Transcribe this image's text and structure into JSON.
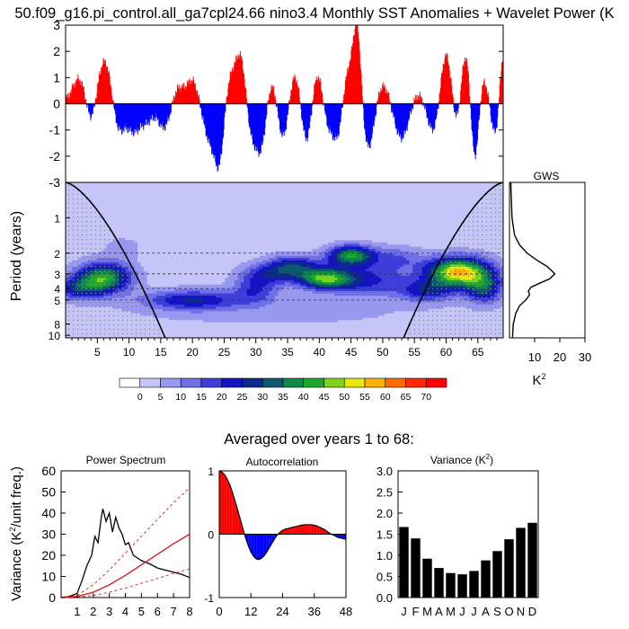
{
  "title": "50.f09_g16.pi_control.all_ga7cpl24.66 nino3.4 Monthly SST Anomalies + Wavelet Power (K",
  "averaged_title": "Averaged over years 1 to 68:",
  "colors": {
    "positive": "#ff0000",
    "negative": "#0000ff",
    "bar": "#000000",
    "cone": "#000000",
    "stipple": "#9a9a9a"
  },
  "chart_data": [
    {
      "id": "timeseries",
      "type": "bar",
      "title": "",
      "xlabel": "",
      "ylabel": "",
      "xlim": [
        0,
        69
      ],
      "ylim": [
        -3,
        3
      ],
      "yticks": [
        -3,
        -2,
        -1,
        0,
        1,
        2,
        3
      ],
      "events": [
        {
          "t": 2.3,
          "a": 1.0,
          "w": 1.2
        },
        {
          "t": 4.0,
          "a": -1.1,
          "w": 0.8
        },
        {
          "t": 6.3,
          "a": 1.8,
          "w": 1.2
        },
        {
          "t": 8.2,
          "a": -1.3,
          "w": 1.0
        },
        {
          "t": 10.8,
          "a": -1.0,
          "w": 1.0
        },
        {
          "t": 12.9,
          "a": -0.6,
          "w": 0.9
        },
        {
          "t": 15.5,
          "a": -0.9,
          "w": 0.9
        },
        {
          "t": 17.8,
          "a": 0.6,
          "w": 0.8
        },
        {
          "t": 20.0,
          "a": 0.9,
          "w": 0.9
        },
        {
          "t": 22.8,
          "a": -1.4,
          "w": 1.0
        },
        {
          "t": 24.3,
          "a": -2.0,
          "w": 0.7
        },
        {
          "t": 26.0,
          "a": 1.0,
          "w": 0.9
        },
        {
          "t": 27.7,
          "a": 1.8,
          "w": 0.8
        },
        {
          "t": 29.2,
          "a": -1.2,
          "w": 0.8
        },
        {
          "t": 30.8,
          "a": -1.7,
          "w": 0.8
        },
        {
          "t": 32.5,
          "a": 0.9,
          "w": 0.8
        },
        {
          "t": 34.3,
          "a": -1.4,
          "w": 0.8
        },
        {
          "t": 36.2,
          "a": 1.2,
          "w": 0.9
        },
        {
          "t": 38.0,
          "a": -1.7,
          "w": 0.8
        },
        {
          "t": 39.7,
          "a": 1.3,
          "w": 0.9
        },
        {
          "t": 41.3,
          "a": -0.9,
          "w": 0.8
        },
        {
          "t": 43.0,
          "a": -1.4,
          "w": 0.8
        },
        {
          "t": 44.5,
          "a": 1.4,
          "w": 0.9
        },
        {
          "t": 46.0,
          "a": 2.9,
          "w": 0.6
        },
        {
          "t": 47.8,
          "a": -1.8,
          "w": 0.9
        },
        {
          "t": 50.0,
          "a": 0.8,
          "w": 1.2
        },
        {
          "t": 53.0,
          "a": -1.4,
          "w": 1.2
        },
        {
          "t": 55.5,
          "a": 0.5,
          "w": 1.3
        },
        {
          "t": 58.0,
          "a": -1.2,
          "w": 1.0
        },
        {
          "t": 60.0,
          "a": 2.1,
          "w": 0.9
        },
        {
          "t": 61.8,
          "a": -1.4,
          "w": 0.8
        },
        {
          "t": 63.0,
          "a": 2.3,
          "w": 0.8
        },
        {
          "t": 64.5,
          "a": -2.5,
          "w": 0.6
        },
        {
          "t": 66.0,
          "a": 1.0,
          "w": 0.8
        },
        {
          "t": 67.8,
          "a": -1.3,
          "w": 0.8
        },
        {
          "t": 68.9,
          "a": 2.2,
          "w": 0.5
        }
      ]
    },
    {
      "id": "wavelet",
      "type": "heatmap",
      "title": "",
      "xlabel": "",
      "ylabel": "Period (years)",
      "xlim": [
        0,
        69
      ],
      "xticks": [
        5,
        10,
        15,
        20,
        25,
        30,
        35,
        40,
        45,
        50,
        55,
        60,
        65
      ],
      "ylim": [
        0.5,
        10.5
      ],
      "ylog": true,
      "yticks": [
        1,
        2,
        3,
        4,
        5,
        8,
        10
      ],
      "dashed_periods": [
        2,
        3,
        4,
        5
      ],
      "cone_of_influence": true,
      "blobs": [
        {
          "t": 6,
          "p": 3.2,
          "st": 3.0,
          "sp": 0.2,
          "v": 40
        },
        {
          "t": 2,
          "p": 4.0,
          "st": 3.0,
          "sp": 0.15,
          "v": 22
        },
        {
          "t": 20,
          "p": 5.0,
          "st": 5.5,
          "sp": 0.14,
          "v": 22
        },
        {
          "t": 30,
          "p": 4.0,
          "st": 2.5,
          "sp": 0.2,
          "v": 16
        },
        {
          "t": 32,
          "p": 3.0,
          "st": 3.0,
          "sp": 0.15,
          "v": 14
        },
        {
          "t": 36,
          "p": 2.6,
          "st": 3.0,
          "sp": 0.15,
          "v": 24
        },
        {
          "t": 41,
          "p": 3.3,
          "st": 3.0,
          "sp": 0.14,
          "v": 40
        },
        {
          "t": 45,
          "p": 2.1,
          "st": 2.5,
          "sp": 0.14,
          "v": 38
        },
        {
          "t": 48,
          "p": 3.4,
          "st": 4.5,
          "sp": 0.22,
          "v": 18
        },
        {
          "t": 52,
          "p": 2.2,
          "st": 3.0,
          "sp": 0.16,
          "v": 12
        },
        {
          "t": 62,
          "p": 2.9,
          "st": 3.5,
          "sp": 0.2,
          "v": 55
        },
        {
          "t": 57,
          "p": 4.2,
          "st": 3.0,
          "sp": 0.15,
          "v": 20
        },
        {
          "t": 66,
          "p": 4.0,
          "st": 2.0,
          "sp": 0.2,
          "v": 26
        },
        {
          "t": 9,
          "p": 1.8,
          "st": 2.0,
          "sp": 0.15,
          "v": 6
        },
        {
          "t": 34,
          "p": 6.5,
          "st": 20.0,
          "sp": 0.25,
          "v": 4
        }
      ]
    },
    {
      "id": "gws",
      "type": "line",
      "title": "GWS",
      "xlabel": "K",
      "xlabel_sup": "2",
      "ylabel": "",
      "xlim": [
        0,
        30
      ],
      "xticks": [
        10,
        20,
        30
      ],
      "ylim": [
        0.5,
        10.5
      ],
      "ylog": true,
      "x": [
        0.5,
        1,
        2,
        4,
        7,
        11,
        15,
        17,
        18,
        16,
        12,
        8.5,
        7.5,
        8,
        6.5,
        4,
        2.5,
        1.5,
        1.2
      ],
      "y": [
        0.5,
        1.0,
        1.4,
        1.7,
        2.0,
        2.3,
        2.6,
        2.85,
        3.0,
        3.3,
        3.6,
        3.9,
        4.2,
        4.5,
        5.0,
        5.6,
        6.5,
        8.0,
        10.5
      ]
    },
    {
      "id": "legend",
      "type": "heatmap-legend",
      "labels": [
        "0",
        "5",
        "10",
        "15",
        "20",
        "25",
        "30",
        "35",
        "40",
        "45",
        "50",
        "55",
        "60",
        "65",
        "70"
      ],
      "levels": [
        0,
        5,
        10,
        15,
        20,
        25,
        30,
        35,
        40,
        45,
        50,
        55,
        60,
        65,
        70
      ],
      "colors": [
        "#ffffff",
        "#c5c5f8",
        "#9898ef",
        "#7070e6",
        "#3e3ed8",
        "#1414c4",
        "#0b2a8c",
        "#0d5a70",
        "#0e8a4e",
        "#1ea82a",
        "#7ed21c",
        "#e8e810",
        "#ffb000",
        "#ff6a00",
        "#ff2a00",
        "#ff0000"
      ]
    },
    {
      "id": "power_spectrum",
      "type": "line",
      "title": "Power Spectrum",
      "xlabel": "",
      "ylabel": "Variance (K",
      "ylabel_sup": "2",
      "ylabel_tail": "/unit freq.)",
      "xlim": [
        0,
        8
      ],
      "ylim": [
        0,
        60
      ],
      "xticks": [
        1,
        2,
        3,
        4,
        5,
        6,
        7,
        8
      ],
      "yticks": [
        0,
        10,
        20,
        30,
        40,
        50,
        60
      ],
      "series": [
        {
          "x": [
            0,
            0.5,
            1,
            1.3,
            1.6,
            1.9,
            2.1,
            2.3,
            2.5,
            2.6,
            2.8,
            3.0,
            3.2,
            3.4,
            3.6,
            3.8,
            4.0,
            4.2,
            4.5,
            5.0,
            5.5,
            6.0,
            6.5,
            7.0,
            7.5,
            8.0
          ],
          "y": [
            0,
            0.5,
            2,
            8,
            15,
            20,
            29,
            26,
            38,
            42,
            36,
            40,
            31,
            38,
            33,
            30,
            25,
            26,
            20,
            17.5,
            16,
            14,
            13,
            12,
            11,
            9.5
          ],
          "color": "#000000",
          "dash": ""
        },
        {
          "x": [
            0,
            1,
            2,
            3,
            4,
            5,
            6,
            7,
            8
          ],
          "y": [
            0,
            0.5,
            2.5,
            6,
            10.5,
            15.5,
            20.5,
            25.5,
            30
          ],
          "color": "#e11b1b",
          "dash": ""
        },
        {
          "x": [
            0,
            1,
            2,
            3,
            4,
            5,
            6,
            7,
            8
          ],
          "y": [
            0,
            1,
            6,
            13,
            21,
            29,
            37,
            45,
            52
          ],
          "color": "#e11b1b",
          "dash": "3,3"
        },
        {
          "x": [
            0,
            1,
            2,
            3,
            4,
            5,
            6,
            7,
            8
          ],
          "y": [
            0,
            0.2,
            1,
            2.5,
            4.5,
            6.8,
            9,
            11.5,
            13.5
          ],
          "color": "#e11b1b",
          "dash": "3,3"
        }
      ]
    },
    {
      "id": "autocorrelation",
      "type": "area",
      "title": "Autocorrelation",
      "xlabel": "",
      "ylabel": "",
      "xlim": [
        0,
        48
      ],
      "ylim": [
        -1,
        1
      ],
      "xticks": [
        0,
        12,
        24,
        36,
        48
      ],
      "yticks": [
        -1,
        0,
        1
      ],
      "x": [
        0,
        1,
        2,
        3,
        4,
        5,
        6,
        7,
        8,
        9,
        10,
        11,
        12,
        13,
        14,
        15,
        16,
        17,
        18,
        19,
        20,
        21,
        22,
        23,
        24,
        25,
        26,
        27,
        28,
        29,
        30,
        31,
        32,
        33,
        34,
        35,
        36,
        37,
        38,
        39,
        40,
        41,
        42,
        43,
        44,
        45,
        46,
        47,
        48
      ],
      "y": [
        1.0,
        0.98,
        0.94,
        0.87,
        0.78,
        0.66,
        0.52,
        0.38,
        0.23,
        0.08,
        -0.06,
        -0.18,
        -0.28,
        -0.35,
        -0.39,
        -0.4,
        -0.38,
        -0.34,
        -0.28,
        -0.21,
        -0.14,
        -0.07,
        -0.01,
        0.03,
        0.06,
        0.08,
        0.09,
        0.1,
        0.11,
        0.12,
        0.13,
        0.14,
        0.15,
        0.15,
        0.15,
        0.15,
        0.14,
        0.13,
        0.11,
        0.09,
        0.07,
        0.04,
        0.01,
        -0.01,
        -0.03,
        -0.05,
        -0.06,
        -0.07,
        -0.08
      ]
    },
    {
      "id": "variance",
      "type": "bar",
      "title": "Variance (K",
      "title_sup": "2",
      "title_tail": ")",
      "xlabel": "",
      "ylabel": "",
      "categories": [
        "J",
        "F",
        "M",
        "A",
        "M",
        "J",
        "J",
        "A",
        "S",
        "O",
        "N",
        "D"
      ],
      "values": [
        1.67,
        1.4,
        0.92,
        0.7,
        0.58,
        0.55,
        0.63,
        0.88,
        1.1,
        1.38,
        1.65,
        1.77
      ],
      "ylim": [
        0,
        3.0
      ],
      "yticks": [
        0.0,
        0.5,
        1.0,
        1.5,
        2.0,
        2.5,
        3.0
      ],
      "ytick_labels": [
        "0.0",
        "0.5",
        "1.0",
        "1.5",
        "2.0",
        "2.5",
        "3.0"
      ]
    }
  ]
}
